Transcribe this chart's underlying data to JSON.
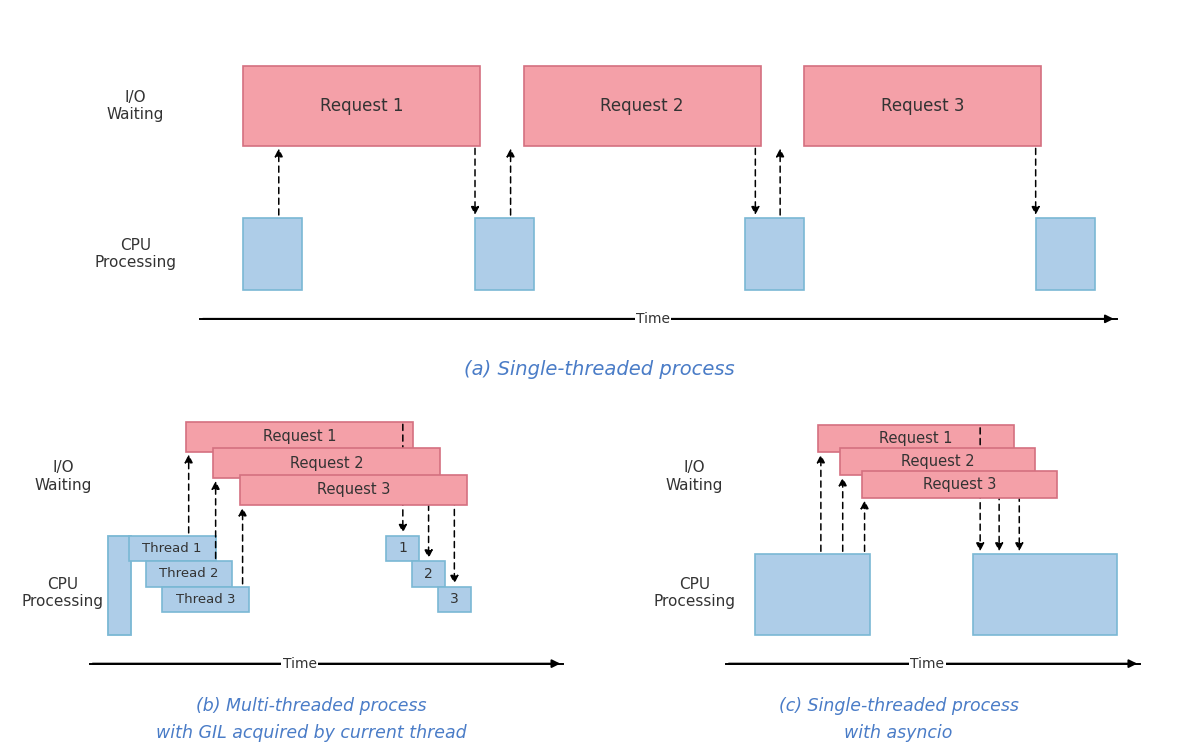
{
  "bg_color": "#ffffff",
  "pink_color": "#f4a0a8",
  "blue_color": "#aecde8",
  "blue_border": "#7ab8d4",
  "pink_border": "#d47080",
  "title_color": "#4a7cc7",
  "text_color": "#333333",
  "caption_a": "(a) Single-threaded process",
  "caption_b": "(b) Multi-threaded process\nwith GIL acquired by current thread",
  "caption_c": "(c) Single-threaded process\nwith asyncio"
}
